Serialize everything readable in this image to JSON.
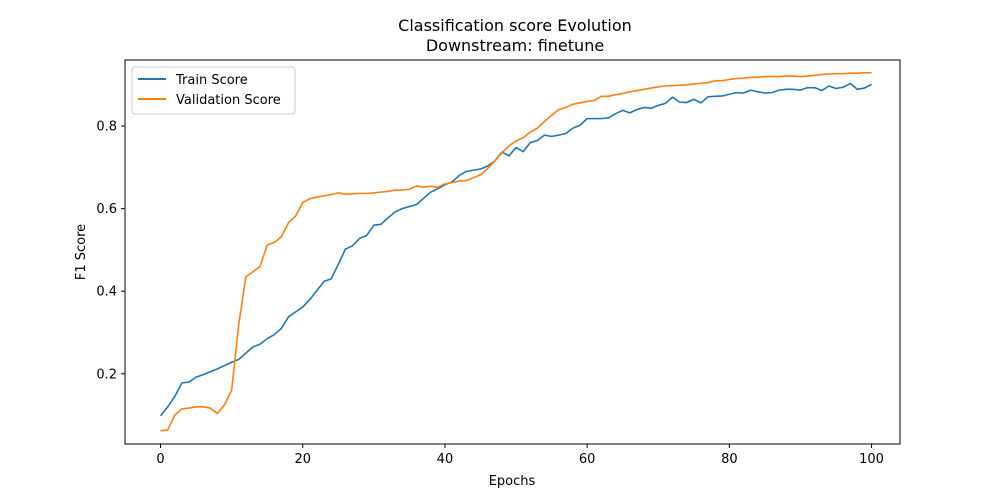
{
  "chart_data": {
    "type": "line",
    "title": "Classification score Evolution",
    "subtitle": "Downstream: finetune",
    "xlabel": "Epochs",
    "ylabel": "F1 Score",
    "xlim": [
      -5,
      104
    ],
    "ylim": [
      0.03,
      0.96
    ],
    "xticks": [
      0,
      20,
      40,
      60,
      80,
      100
    ],
    "yticks": [
      0.2,
      0.4,
      0.6,
      0.8
    ],
    "grid": false,
    "legend_position": "top-left",
    "series": [
      {
        "name": "Train Score",
        "color": "#1f77b4",
        "values": [
          0.098,
          0.12,
          0.145,
          0.178,
          0.18,
          0.192,
          0.198,
          0.205,
          0.212,
          0.22,
          0.228,
          0.235,
          0.25,
          0.265,
          0.272,
          0.285,
          0.295,
          0.31,
          0.338,
          0.35,
          0.362,
          0.38,
          0.402,
          0.424,
          0.43,
          0.465,
          0.502,
          0.51,
          0.528,
          0.535,
          0.56,
          0.562,
          0.578,
          0.592,
          0.6,
          0.605,
          0.61,
          0.625,
          0.64,
          0.648,
          0.658,
          0.665,
          0.68,
          0.69,
          0.693,
          0.696,
          0.703,
          0.715,
          0.737,
          0.728,
          0.748,
          0.738,
          0.76,
          0.765,
          0.778,
          0.775,
          0.778,
          0.782,
          0.795,
          0.802,
          0.818,
          0.818,
          0.818,
          0.82,
          0.83,
          0.838,
          0.832,
          0.84,
          0.845,
          0.843,
          0.85,
          0.855,
          0.87,
          0.858,
          0.857,
          0.865,
          0.856,
          0.871,
          0.872,
          0.873,
          0.877,
          0.881,
          0.88,
          0.887,
          0.883,
          0.88,
          0.881,
          0.887,
          0.889,
          0.889,
          0.887,
          0.893,
          0.893,
          0.886,
          0.897,
          0.891,
          0.894,
          0.903,
          0.889,
          0.892,
          0.901
        ]
      },
      {
        "name": "Validation Score",
        "color": "#ff7f0e",
        "values": [
          0.062,
          0.064,
          0.1,
          0.115,
          0.117,
          0.12,
          0.12,
          0.117,
          0.104,
          0.125,
          0.16,
          0.32,
          0.435,
          0.447,
          0.46,
          0.512,
          0.518,
          0.532,
          0.566,
          0.582,
          0.615,
          0.624,
          0.628,
          0.631,
          0.634,
          0.638,
          0.635,
          0.636,
          0.637,
          0.637,
          0.638,
          0.64,
          0.642,
          0.645,
          0.645,
          0.647,
          0.655,
          0.652,
          0.654,
          0.652,
          0.66,
          0.663,
          0.667,
          0.668,
          0.675,
          0.682,
          0.697,
          0.715,
          0.735,
          0.752,
          0.764,
          0.772,
          0.785,
          0.795,
          0.811,
          0.826,
          0.84,
          0.845,
          0.853,
          0.856,
          0.86,
          0.862,
          0.872,
          0.872,
          0.876,
          0.879,
          0.883,
          0.886,
          0.889,
          0.892,
          0.895,
          0.897,
          0.898,
          0.899,
          0.9,
          0.902,
          0.904,
          0.905,
          0.91,
          0.91,
          0.913,
          0.915,
          0.916,
          0.918,
          0.918,
          0.92,
          0.92,
          0.92,
          0.921,
          0.921,
          0.92,
          0.921,
          0.923,
          0.925,
          0.926,
          0.927,
          0.927,
          0.928,
          0.928,
          0.929,
          0.929
        ]
      }
    ]
  }
}
